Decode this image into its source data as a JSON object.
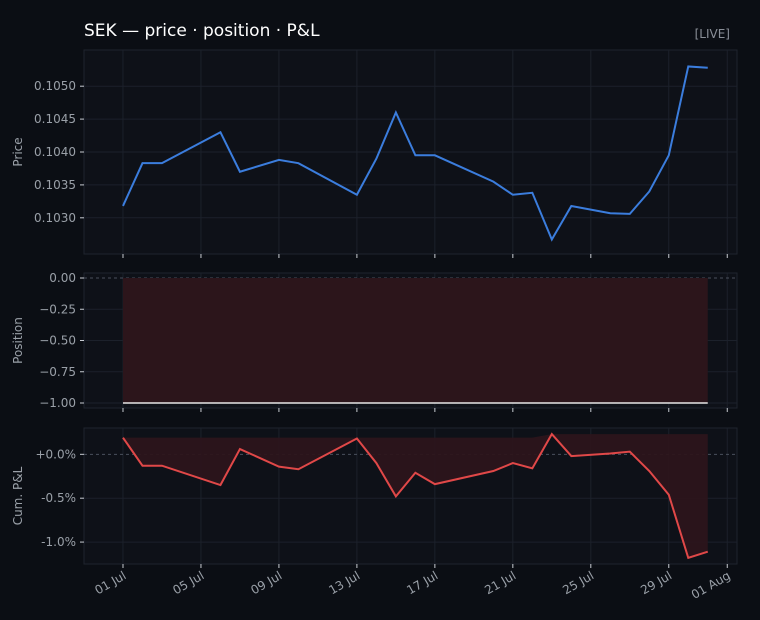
{
  "page": {
    "title": "SEK — price · position · P&L",
    "badge": "[LIVE]"
  },
  "colors": {
    "background": "#0b0e14",
    "panel": "#0e1118",
    "grid": "#1c212b",
    "axis_text": "#9aa0a8",
    "price_line": "#3b7ddd",
    "pnl_line": "#e04848",
    "position_fill": "#2c151b",
    "position_line": "#e6e6e6"
  },
  "chart_data": [
    {
      "type": "line",
      "ylabel": "Price",
      "ylim": [
        0.10245,
        0.10555
      ],
      "yticks": [
        0.103,
        0.1035,
        0.104,
        0.1045,
        0.105
      ],
      "ytick_labels": [
        "0.1030",
        "0.1035",
        "0.1040",
        "0.1045",
        "0.1050"
      ],
      "grid": true,
      "series": [
        {
          "x": [
            "2024-07-01",
            "2024-07-02",
            "2024-07-03",
            "2024-07-06",
            "2024-07-07",
            "2024-07-09",
            "2024-07-10",
            "2024-07-13",
            "2024-07-14",
            "2024-07-15",
            "2024-07-16",
            "2024-07-17",
            "2024-07-20",
            "2024-07-21",
            "2024-07-22",
            "2024-07-23",
            "2024-07-24",
            "2024-07-26",
            "2024-07-27",
            "2024-07-28",
            "2024-07-29",
            "2024-07-30",
            "2024-07-31"
          ],
          "values": [
            0.10318,
            0.10383,
            0.10383,
            0.1043,
            0.1037,
            0.10388,
            0.10383,
            0.10335,
            0.1039,
            0.1046,
            0.10395,
            0.10395,
            0.10355,
            0.10335,
            0.10338,
            0.10267,
            0.10318,
            0.10307,
            0.10306,
            0.1034,
            0.10395,
            0.1053,
            0.10528
          ]
        }
      ]
    },
    {
      "type": "area",
      "ylabel": "Position",
      "ylim": [
        -1.04,
        0.04
      ],
      "yticks": [
        0,
        -0.25,
        -0.5,
        -0.75,
        -1
      ],
      "ytick_labels": [
        "0.00",
        "−0.25",
        "−0.50",
        "−0.75",
        "−1.00"
      ],
      "grid": true,
      "series": [
        {
          "x": [
            "2024-07-01",
            "2024-07-31"
          ],
          "values": [
            -1,
            -1
          ]
        }
      ]
    },
    {
      "type": "line",
      "ylabel": "Cum. P&L",
      "ylim": [
        -1.25,
        0.3
      ],
      "yticks": [
        0,
        -0.5,
        -1
      ],
      "ytick_labels": [
        "+0.0%",
        "-0.5%",
        "-1.0%"
      ],
      "grid": true,
      "series": [
        {
          "x": [
            "2024-07-01",
            "2024-07-02",
            "2024-07-03",
            "2024-07-06",
            "2024-07-07",
            "2024-07-09",
            "2024-07-10",
            "2024-07-13",
            "2024-07-14",
            "2024-07-15",
            "2024-07-16",
            "2024-07-17",
            "2024-07-20",
            "2024-07-21",
            "2024-07-22",
            "2024-07-23",
            "2024-07-24",
            "2024-07-26",
            "2024-07-27",
            "2024-07-28",
            "2024-07-29",
            "2024-07-30",
            "2024-07-31"
          ],
          "values": [
            0.19,
            -0.13,
            -0.13,
            -0.35,
            0.06,
            -0.14,
            -0.17,
            0.18,
            -0.1,
            -0.48,
            -0.21,
            -0.34,
            -0.19,
            -0.1,
            -0.16,
            0.23,
            -0.02,
            0.01,
            0.03,
            -0.19,
            -0.46,
            -1.18,
            -1.11
          ]
        }
      ]
    }
  ],
  "x_axis": {
    "range": [
      "2024-06-29",
      "2024-08-01T12:00"
    ],
    "tick_dates": [
      "2024-07-01",
      "2024-07-05",
      "2024-07-09",
      "2024-07-13",
      "2024-07-17",
      "2024-07-21",
      "2024-07-25",
      "2024-07-29",
      "2024-08-01"
    ],
    "tick_labels": [
      "01 Jul",
      "05 Jul",
      "09 Jul",
      "13 Jul",
      "17 Jul",
      "21 Jul",
      "25 Jul",
      "29 Jul",
      "01 Aug"
    ]
  }
}
